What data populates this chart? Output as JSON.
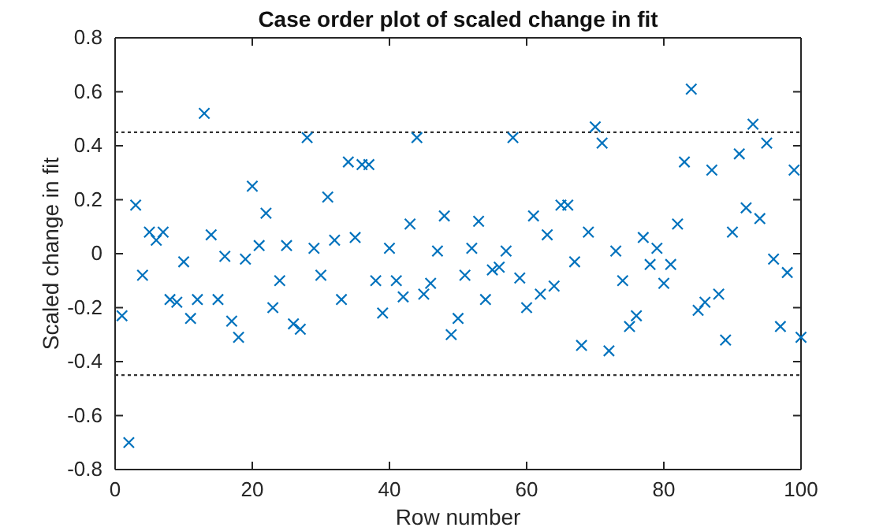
{
  "chart_data": {
    "type": "scatter",
    "title": "Case order plot of scaled change in fit",
    "xlabel": "Row number",
    "ylabel": "Scaled change in fit",
    "x": [
      1,
      2,
      3,
      4,
      5,
      6,
      7,
      8,
      9,
      10,
      11,
      12,
      13,
      14,
      15,
      16,
      17,
      18,
      19,
      20,
      21,
      22,
      23,
      24,
      25,
      26,
      27,
      28,
      29,
      30,
      31,
      32,
      33,
      34,
      35,
      36,
      37,
      38,
      39,
      40,
      41,
      42,
      43,
      44,
      45,
      46,
      47,
      48,
      49,
      50,
      51,
      52,
      53,
      54,
      55,
      56,
      57,
      58,
      59,
      60,
      61,
      62,
      63,
      64,
      65,
      66,
      67,
      68,
      69,
      70,
      71,
      72,
      73,
      74,
      75,
      76,
      77,
      78,
      79,
      80,
      81,
      82,
      83,
      84,
      85,
      86,
      87,
      88,
      89,
      90,
      91,
      92,
      93,
      94,
      95,
      96,
      97,
      98,
      99,
      100
    ],
    "series": [
      {
        "color": "#0072bd",
        "values": [
          -0.23,
          -0.7,
          0.18,
          -0.08,
          0.08,
          0.05,
          0.08,
          -0.17,
          -0.18,
          -0.03,
          -0.24,
          -0.17,
          0.52,
          0.07,
          -0.17,
          -0.01,
          -0.25,
          -0.31,
          -0.02,
          0.25,
          0.03,
          0.15,
          -0.2,
          -0.1,
          0.03,
          -0.26,
          -0.28,
          0.43,
          0.02,
          -0.08,
          0.21,
          0.05,
          -0.17,
          0.34,
          0.06,
          0.33,
          0.33,
          -0.1,
          -0.22,
          0.02,
          -0.1,
          -0.16,
          0.11,
          0.43,
          -0.15,
          -0.11,
          0.01,
          0.14,
          -0.3,
          -0.24,
          -0.08,
          0.02,
          0.12,
          -0.17,
          -0.06,
          -0.05,
          0.01,
          0.43,
          -0.09,
          -0.2,
          0.14,
          -0.15,
          0.07,
          -0.12,
          0.18,
          0.18,
          -0.03,
          -0.34,
          0.08,
          0.47,
          0.41,
          -0.36,
          0.01,
          -0.1,
          -0.27,
          -0.23,
          0.06,
          -0.04,
          0.02,
          -0.11,
          -0.04,
          0.11,
          0.34,
          0.61,
          -0.21,
          -0.18,
          0.31,
          -0.15,
          -0.32,
          0.08,
          0.37,
          0.17,
          0.48,
          0.13,
          0.41,
          -0.02,
          -0.27,
          -0.07,
          0.31,
          -0.31
        ]
      }
    ],
    "xlim": [
      0,
      100
    ],
    "xticks": [
      0,
      20,
      40,
      60,
      80,
      100
    ],
    "ylim": [
      -0.8,
      0.8
    ],
    "yticks": [
      -0.8,
      -0.6,
      -0.4,
      -0.2,
      0,
      0.2,
      0.4,
      0.6,
      0.8
    ],
    "ref_lines": [
      {
        "axis": "y",
        "value": 0.45,
        "line_style": "dotted",
        "color": "#333333"
      },
      {
        "axis": "y",
        "value": -0.45,
        "line_style": "dotted",
        "color": "#333333"
      }
    ],
    "marker": "cross",
    "grid": false
  }
}
